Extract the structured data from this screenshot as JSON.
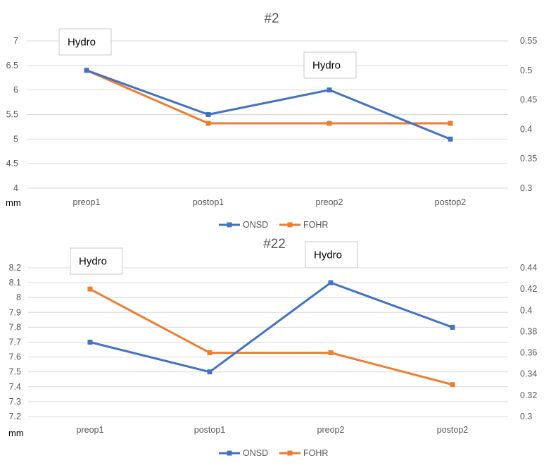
{
  "colors": {
    "onsd": "#4472C4",
    "fohr": "#ED7D31",
    "text": "#595959",
    "grid": "#D9D9D9"
  },
  "chart_data": [
    {
      "type": "line",
      "title": "#2",
      "categories": [
        "preop1",
        "postop1",
        "preop2",
        "postop2"
      ],
      "y_unit_label": "mm",
      "y_left": {
        "ticks": [
          "4",
          "4.5",
          "5",
          "5.5",
          "6",
          "6.5",
          "7"
        ],
        "range": [
          4,
          7
        ]
      },
      "y_right": {
        "ticks": [
          "0.3",
          "0.35",
          "0.4",
          "0.45",
          "0.5",
          "0.55"
        ],
        "range": [
          0.3,
          0.55
        ]
      },
      "grid": true,
      "legend": "bottom",
      "series": [
        {
          "name": "ONSD",
          "axis": "left",
          "values": [
            6.4,
            5.5,
            6.0,
            5.0
          ]
        },
        {
          "name": "FOHR",
          "axis": "right",
          "values": [
            0.5,
            0.41,
            0.41,
            0.41
          ]
        }
      ],
      "annotations": [
        {
          "text": "Hydro",
          "category_index": 0
        },
        {
          "text": "Hydro",
          "category_index": 2
        }
      ]
    },
    {
      "type": "line",
      "title": "#22",
      "categories": [
        "preop1",
        "postop1",
        "preop2",
        "postop2"
      ],
      "y_unit_label": "mm",
      "y_left": {
        "ticks": [
          "7.2",
          "7.3",
          "7.4",
          "7.5",
          "7.6",
          "7.7",
          "7.8",
          "7.9",
          "8",
          "8.1",
          "8.2"
        ],
        "range": [
          7.2,
          8.2
        ]
      },
      "y_right": {
        "ticks": [
          "0.3",
          "0.32",
          "0.34",
          "0.36",
          "0.38",
          "0.4",
          "0.42",
          "0.44"
        ],
        "range": [
          0.3,
          0.44
        ]
      },
      "grid": true,
      "legend": "bottom",
      "series": [
        {
          "name": "ONSD",
          "axis": "left",
          "values": [
            7.7,
            7.5,
            8.1,
            7.8
          ]
        },
        {
          "name": "FOHR",
          "axis": "right",
          "values": [
            0.42,
            0.36,
            0.36,
            0.33
          ]
        }
      ],
      "annotations": [
        {
          "text": "Hydro",
          "category_index": 0
        },
        {
          "text": "Hydro",
          "category_index": 2
        }
      ]
    }
  ]
}
